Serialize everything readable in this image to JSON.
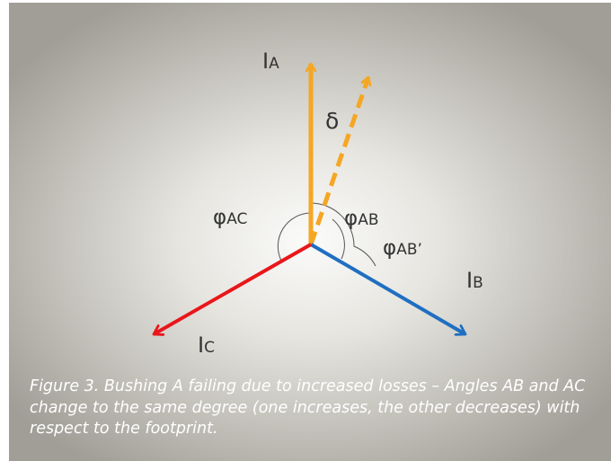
{
  "diagram": {
    "phasors": [
      {
        "id": "IA",
        "symbol": "I",
        "subscript": "A",
        "color": "#f5a623",
        "style": "solid"
      },
      {
        "id": "IA-shifted",
        "symbol": "",
        "subscript": "",
        "color": "#f5a623",
        "style": "dashed"
      },
      {
        "id": "IB",
        "symbol": "I",
        "subscript": "B",
        "color": "#1f6fc1",
        "style": "solid"
      },
      {
        "id": "IC",
        "symbol": "I",
        "subscript": "C",
        "color": "#e8171b",
        "style": "solid"
      }
    ],
    "angles": {
      "delta": "δ",
      "phi_ac": {
        "symbol": "φ",
        "subscript": "AC"
      },
      "phi_ab": {
        "symbol": "φ",
        "subscript": "AB"
      },
      "phi_ab_prime": {
        "symbol": "φ",
        "subscript": "AB’"
      }
    }
  },
  "caption": "Figure 3. Bushing A failing due to increased losses – Angles AB and AC change to the same degree (one increases, the other decreases) with respect to the footprint."
}
